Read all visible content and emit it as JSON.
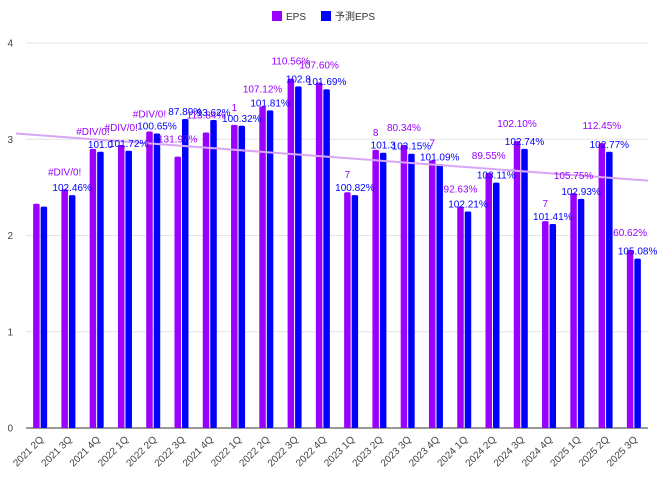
{
  "chart_data": {
    "type": "bar",
    "title": "",
    "xlabel": "",
    "ylabel": "",
    "ylim": [
      0,
      4
    ],
    "yticks": [
      "0",
      "1",
      "2",
      "3",
      "4"
    ],
    "grid": true,
    "legend_position": "top-center",
    "categories": [
      "2021 2Q",
      "2021 3Q",
      "2021 4Q",
      "2022 1Q",
      "2022 2Q",
      "2022 3Q",
      "2021 4Q",
      "2022 1Q",
      "2022 2Q",
      "2022 3Q",
      "2022 4Q",
      "2023 1Q",
      "2023 2Q",
      "2023 3Q",
      "2023 4Q",
      "2024 1Q",
      "2024 2Q",
      "2024 3Q",
      "2024 4Q",
      "2025 1Q",
      "2025 2Q",
      "2025 3Q"
    ],
    "series": [
      {
        "name": "EPS",
        "color": "#9900ff",
        "values": [
          2.33,
          2.48,
          2.9,
          2.94,
          3.08,
          2.82,
          3.07,
          3.15,
          3.34,
          3.63,
          3.59,
          2.45,
          2.89,
          2.94,
          2.78,
          2.3,
          2.65,
          2.98,
          2.15,
          2.44,
          2.96,
          1.85
        ],
        "labels": [
          "",
          "#DIV/0!",
          "#DIV/0!",
          "#DIV/0!",
          "#DIV/0!",
          "131.97%",
          "113.84%",
          "1",
          "107.12%",
          "110.56%",
          "107.60%",
          "7",
          "8",
          "80.34%",
          "7",
          "92.63%",
          "89.55%",
          "102.10%",
          "7",
          "105.75%",
          "112.45%",
          "60.62%"
        ]
      },
      {
        "name": "予測EPS",
        "color": "#0000ff",
        "values": [
          2.3,
          2.42,
          2.87,
          2.88,
          3.06,
          3.21,
          3.2,
          3.14,
          3.3,
          3.55,
          3.52,
          2.42,
          2.86,
          2.85,
          2.74,
          2.25,
          2.55,
          2.9,
          2.12,
          2.38,
          2.87,
          1.76
        ],
        "labels": [
          "",
          "102.46%",
          "101.0",
          "101.72%",
          "100.65%",
          "87.89%",
          "93.62%",
          "100.32%",
          "101.81%",
          "102.8",
          "101.69%",
          "100.82%",
          "101.3",
          "103.15%",
          "101.09%",
          "102.21%",
          "103.11%",
          "102.74%",
          "101.41%",
          "102.93%",
          "102.77%",
          "105.08%"
        ]
      }
    ],
    "trendline": {
      "series": "EPS",
      "color": "#d9a6f5",
      "start": 3.06,
      "end": 2.57
    }
  }
}
